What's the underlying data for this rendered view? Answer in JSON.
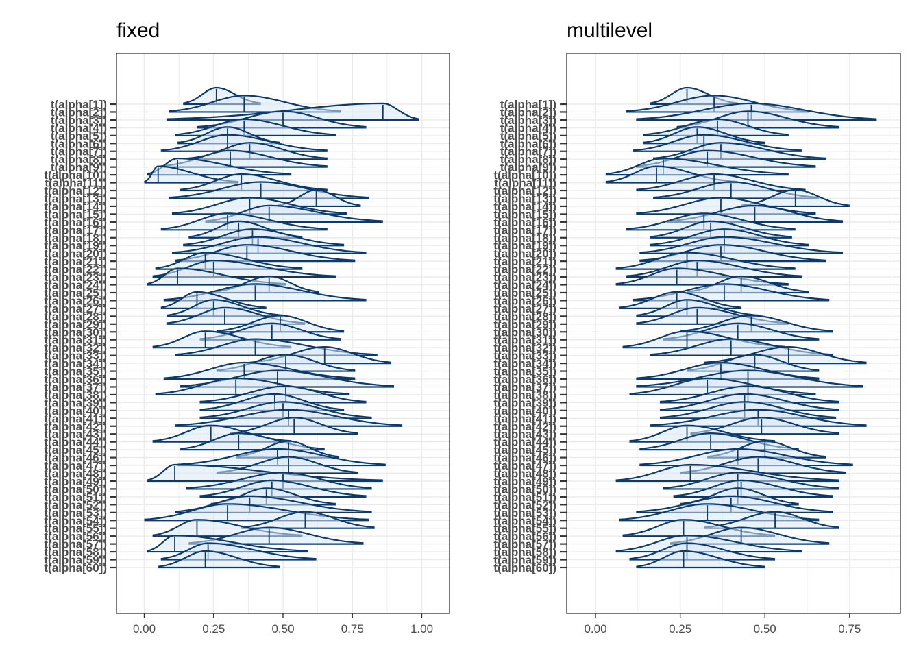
{
  "colors": {
    "mark": "#0b3a6b",
    "fill": "#d8e8f5",
    "grid": "#ebebeb",
    "frame": "#333333",
    "tick_text": "#4d4d4d"
  },
  "chart_data": [
    {
      "type": "ridgeline",
      "title": "fixed",
      "xlabel": "",
      "ylabel": "",
      "grid": true,
      "xlim": [
        -0.1,
        1.1
      ],
      "xticks": [
        "0.00",
        "0.25",
        "0.50",
        "0.75",
        "1.00"
      ],
      "categories": [
        "t(alpha[1])",
        "t(alpha[2])",
        "t(alpha[3])",
        "t(alpha[4])",
        "t(alpha[5])",
        "t(alpha[6])",
        "t(alpha[7])",
        "t(alpha[8])",
        "t(alpha[9])",
        "t(alpha[10])",
        "t(alpha[11])",
        "t(alpha[12])",
        "t(alpha[13])",
        "t(alpha[14])",
        "t(alpha[15])",
        "t(alpha[16])",
        "t(alpha[17])",
        "t(alpha[18])",
        "t(alpha[19])",
        "t(alpha[20])",
        "t(alpha[21])",
        "t(alpha[22])",
        "t(alpha[23])",
        "t(alpha[24])",
        "t(alpha[25])",
        "t(alpha[26])",
        "t(alpha[27])",
        "t(alpha[28])",
        "t(alpha[29])",
        "t(alpha[30])",
        "t(alpha[31])",
        "t(alpha[32])",
        "t(alpha[33])",
        "t(alpha[34])",
        "t(alpha[35])",
        "t(alpha[36])",
        "t(alpha[37])",
        "t(alpha[38])",
        "t(alpha[39])",
        "t(alpha[40])",
        "t(alpha[41])",
        "t(alpha[42])",
        "t(alpha[43])",
        "t(alpha[44])",
        "t(alpha[45])",
        "t(alpha[46])",
        "t(alpha[47])",
        "t(alpha[48])",
        "t(alpha[49])",
        "t(alpha[50])",
        "t(alpha[51])",
        "t(alpha[52])",
        "t(alpha[53])",
        "t(alpha[54])",
        "t(alpha[55])",
        "t(alpha[56])",
        "t(alpha[57])",
        "t(alpha[58])",
        "t(alpha[59])",
        "t(alpha[60])"
      ],
      "low": [
        0.14,
        0.09,
        0.08,
        0.19,
        0.11,
        0.12,
        0.06,
        0.16,
        0.06,
        0.01,
        0.0,
        0.13,
        0.09,
        0.48,
        0.1,
        0.22,
        0.06,
        0.16,
        0.14,
        0.1,
        0.11,
        0.04,
        0.03,
        0.01,
        0.25,
        0.07,
        0.06,
        0.08,
        0.08,
        0.26,
        0.2,
        0.03,
        0.11,
        0.38,
        0.26,
        0.07,
        0.13,
        0.04,
        0.2,
        0.2,
        0.2,
        0.11,
        0.31,
        0.03,
        0.13,
        0.33,
        0.12,
        0.26,
        0.01,
        0.15,
        0.2,
        0.24,
        0.11,
        0.0,
        0.35,
        0.03,
        0.16,
        0.01,
        0.06,
        0.05
      ],
      "median": [
        0.26,
        0.36,
        0.86,
        0.5,
        0.36,
        0.3,
        0.3,
        0.38,
        0.31,
        0.12,
        0.05,
        0.35,
        0.42,
        0.62,
        0.38,
        0.45,
        0.3,
        0.34,
        0.39,
        0.41,
        0.37,
        0.22,
        0.25,
        0.12,
        0.45,
        0.4,
        0.19,
        0.25,
        0.29,
        0.49,
        0.46,
        0.22,
        0.4,
        0.65,
        0.51,
        0.36,
        0.48,
        0.33,
        0.51,
        0.47,
        0.5,
        0.52,
        0.54,
        0.24,
        0.34,
        0.52,
        0.48,
        0.52,
        0.11,
        0.5,
        0.46,
        0.44,
        0.38,
        0.3,
        0.58,
        0.19,
        0.45,
        0.11,
        0.23,
        0.22
      ],
      "high": [
        0.42,
        0.71,
        0.99,
        0.8,
        0.69,
        0.49,
        0.66,
        0.66,
        0.66,
        0.53,
        0.34,
        0.66,
        0.81,
        0.78,
        0.73,
        0.86,
        0.66,
        0.57,
        0.72,
        0.8,
        0.76,
        0.57,
        0.69,
        0.51,
        0.63,
        0.8,
        0.44,
        0.5,
        0.58,
        0.72,
        0.71,
        0.53,
        0.84,
        0.89,
        0.76,
        0.76,
        0.9,
        0.74,
        0.8,
        0.72,
        0.82,
        0.93,
        0.77,
        0.53,
        0.65,
        0.7,
        0.87,
        0.77,
        0.86,
        0.82,
        0.8,
        0.69,
        0.82,
        0.81,
        0.83,
        0.57,
        0.79,
        0.59,
        0.62,
        0.49
      ]
    },
    {
      "type": "ridgeline",
      "title": "multilevel",
      "xlabel": "",
      "ylabel": "",
      "grid": true,
      "xlim": [
        -0.085,
        0.9
      ],
      "xticks": [
        "0.00",
        "0.25",
        "0.50",
        "0.75"
      ],
      "categories": [
        "t(alpha[1])",
        "t(alpha[2])",
        "t(alpha[3])",
        "t(alpha[4])",
        "t(alpha[5])",
        "t(alpha[6])",
        "t(alpha[7])",
        "t(alpha[8])",
        "t(alpha[9])",
        "t(alpha[10])",
        "t(alpha[11])",
        "t(alpha[12])",
        "t(alpha[13])",
        "t(alpha[14])",
        "t(alpha[15])",
        "t(alpha[16])",
        "t(alpha[17])",
        "t(alpha[18])",
        "t(alpha[19])",
        "t(alpha[20])",
        "t(alpha[21])",
        "t(alpha[22])",
        "t(alpha[23])",
        "t(alpha[24])",
        "t(alpha[25])",
        "t(alpha[26])",
        "t(alpha[27])",
        "t(alpha[28])",
        "t(alpha[29])",
        "t(alpha[30])",
        "t(alpha[31])",
        "t(alpha[32])",
        "t(alpha[33])",
        "t(alpha[34])",
        "t(alpha[35])",
        "t(alpha[36])",
        "t(alpha[37])",
        "t(alpha[38])",
        "t(alpha[39])",
        "t(alpha[40])",
        "t(alpha[41])",
        "t(alpha[42])",
        "t(alpha[43])",
        "t(alpha[44])",
        "t(alpha[45])",
        "t(alpha[46])",
        "t(alpha[47])",
        "t(alpha[48])",
        "t(alpha[49])",
        "t(alpha[50])",
        "t(alpha[51])",
        "t(alpha[52])",
        "t(alpha[53])",
        "t(alpha[54])",
        "t(alpha[55])",
        "t(alpha[56])",
        "t(alpha[57])",
        "t(alpha[58])",
        "t(alpha[59])",
        "t(alpha[60])"
      ],
      "low": [
        0.16,
        0.09,
        0.12,
        0.24,
        0.14,
        0.14,
        0.11,
        0.17,
        0.12,
        0.03,
        0.03,
        0.12,
        0.17,
        0.43,
        0.12,
        0.21,
        0.09,
        0.16,
        0.16,
        0.13,
        0.13,
        0.06,
        0.09,
        0.06,
        0.27,
        0.11,
        0.07,
        0.12,
        0.12,
        0.25,
        0.2,
        0.08,
        0.16,
        0.32,
        0.27,
        0.12,
        0.12,
        0.1,
        0.19,
        0.19,
        0.19,
        0.16,
        0.28,
        0.1,
        0.13,
        0.33,
        0.13,
        0.25,
        0.06,
        0.2,
        0.23,
        0.25,
        0.12,
        0.07,
        0.32,
        0.08,
        0.22,
        0.06,
        0.1,
        0.12
      ],
      "median": [
        0.27,
        0.35,
        0.46,
        0.45,
        0.36,
        0.3,
        0.32,
        0.37,
        0.33,
        0.2,
        0.18,
        0.35,
        0.4,
        0.59,
        0.37,
        0.47,
        0.32,
        0.34,
        0.38,
        0.38,
        0.37,
        0.27,
        0.3,
        0.24,
        0.43,
        0.38,
        0.24,
        0.27,
        0.3,
        0.46,
        0.42,
        0.27,
        0.4,
        0.57,
        0.47,
        0.37,
        0.45,
        0.33,
        0.45,
        0.44,
        0.44,
        0.48,
        0.49,
        0.27,
        0.34,
        0.5,
        0.42,
        0.48,
        0.28,
        0.42,
        0.43,
        0.42,
        0.4,
        0.33,
        0.53,
        0.26,
        0.43,
        0.27,
        0.27,
        0.26
      ],
      "high": [
        0.42,
        0.63,
        0.83,
        0.72,
        0.57,
        0.5,
        0.61,
        0.68,
        0.65,
        0.57,
        0.42,
        0.62,
        0.66,
        0.75,
        0.65,
        0.73,
        0.59,
        0.58,
        0.63,
        0.73,
        0.68,
        0.59,
        0.61,
        0.57,
        0.63,
        0.69,
        0.43,
        0.48,
        0.57,
        0.7,
        0.66,
        0.56,
        0.7,
        0.8,
        0.66,
        0.66,
        0.79,
        0.65,
        0.72,
        0.72,
        0.71,
        0.8,
        0.72,
        0.53,
        0.6,
        0.68,
        0.76,
        0.74,
        0.72,
        0.72,
        0.7,
        0.6,
        0.7,
        0.66,
        0.72,
        0.53,
        0.69,
        0.61,
        0.53,
        0.5
      ]
    }
  ]
}
